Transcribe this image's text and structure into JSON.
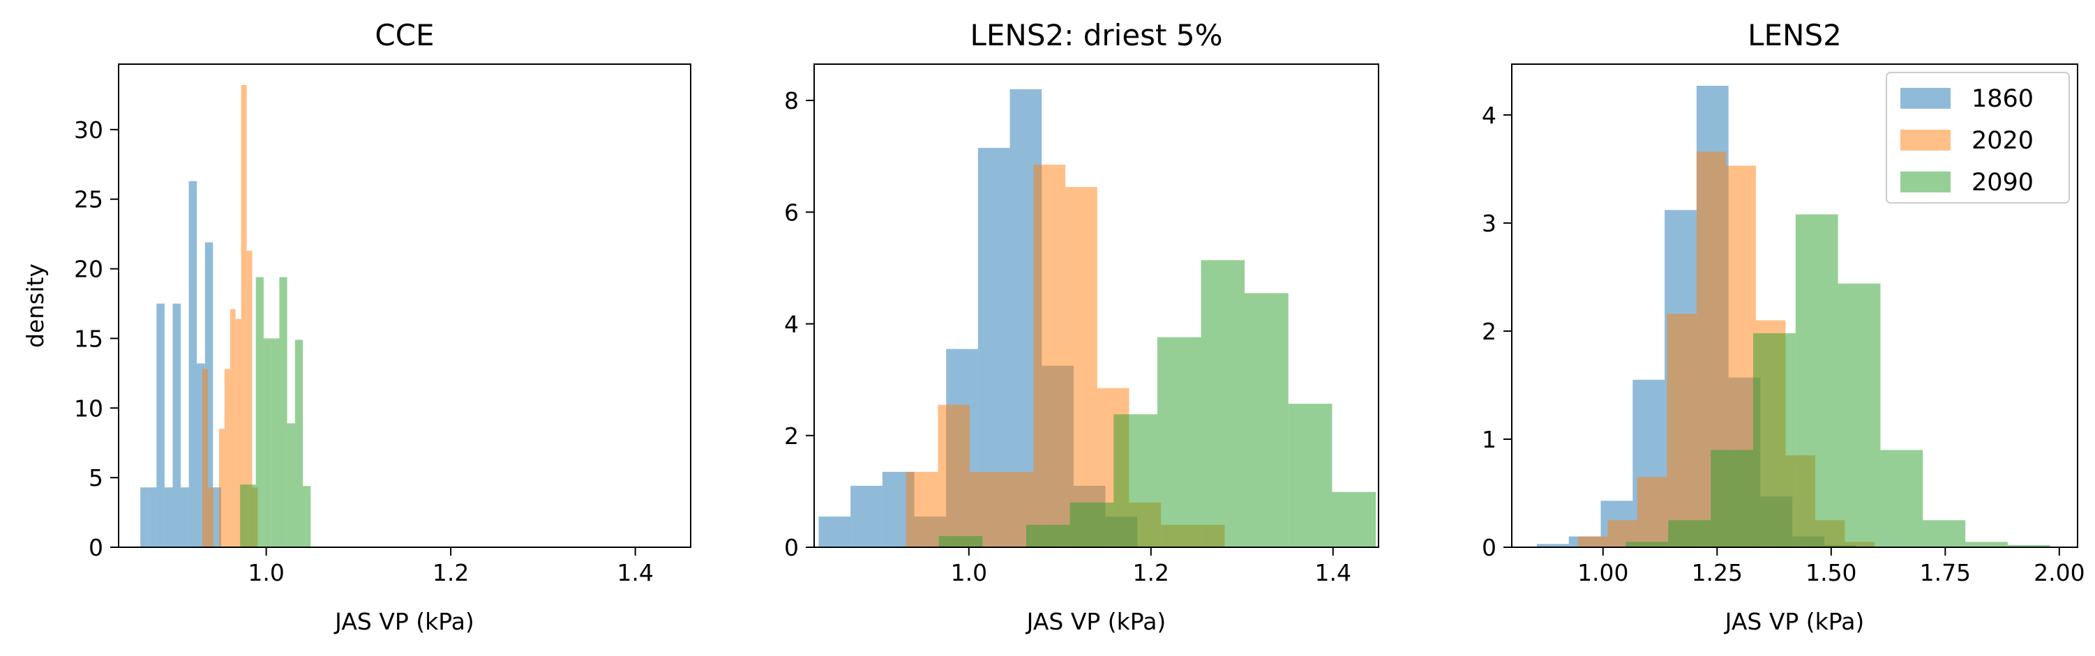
{
  "colors": {
    "c1860": "#1f77b4",
    "c2020": "#ff7f0e",
    "c2090": "#2ca02c"
  },
  "legend": {
    "placement": "top-right",
    "panel": 2,
    "entries": [
      "1860",
      "2020",
      "2090"
    ]
  },
  "chart_data": [
    {
      "type": "histogram",
      "title": "CCE",
      "xlabel": "JAS VP (kPa)",
      "ylabel": "density",
      "xlim": [
        0.84,
        1.46
      ],
      "ylim": [
        0,
        34.7
      ],
      "xticks": [
        1.0,
        1.2,
        1.4
      ],
      "xtick_labels": [
        "1.0",
        "1.2",
        "1.4"
      ],
      "yticks": [
        0,
        5,
        10,
        15,
        20,
        25,
        30
      ],
      "ytick_labels": [
        "0",
        "5",
        "10",
        "15",
        "20",
        "25",
        "30"
      ],
      "series": [
        {
          "name": "1860",
          "bins": [
            0.8636,
            0.8723,
            0.8811,
            0.8898,
            0.8986,
            0.9073,
            0.9161,
            0.9248,
            0.9336,
            0.9423,
            0.9511
          ],
          "values": [
            4.3,
            4.3,
            17.5,
            4.3,
            17.5,
            4.3,
            26.3,
            13.2,
            21.9,
            4.3
          ]
        },
        {
          "name": "2020",
          "bins": [
            0.9308,
            0.9368,
            0.9428,
            0.9488,
            0.9548,
            0.9608,
            0.9668,
            0.9728,
            0.9788,
            0.9848,
            0.9908
          ],
          "values": [
            12.8,
            4.3,
            0,
            8.5,
            12.8,
            17.1,
            16.4,
            33.2,
            21.3,
            4.3
          ]
        },
        {
          "name": "2090",
          "bins": [
            0.9632,
            0.9717,
            0.9802,
            0.9887,
            0.9972,
            1.0057,
            1.0142,
            1.0227,
            1.0312,
            1.0397,
            1.0482
          ],
          "values": [
            0,
            4.5,
            4.5,
            19.4,
            15.0,
            15.0,
            19.4,
            8.9,
            14.9,
            4.4
          ]
        }
      ]
    },
    {
      "type": "histogram",
      "title": "LENS2: driest 5%",
      "xlabel": "JAS VP (kPa)",
      "ylabel": "",
      "xlim": [
        0.83,
        1.45
      ],
      "ylim": [
        0,
        8.65
      ],
      "xticks": [
        1.0,
        1.2,
        1.4
      ],
      "xtick_labels": [
        "1.0",
        "1.2",
        "1.4"
      ],
      "yticks": [
        0,
        2,
        4,
        6,
        8
      ],
      "ytick_labels": [
        "0",
        "2",
        "4",
        "6",
        "8"
      ],
      "series": [
        {
          "name": "1860",
          "bins": [
            0.835,
            0.87,
            0.905,
            0.94,
            0.975,
            1.01,
            1.045,
            1.08,
            1.115,
            1.15,
            1.185
          ],
          "values": [
            0.55,
            1.1,
            1.35,
            0.55,
            3.55,
            7.15,
            8.2,
            3.25,
            1.1,
            0.55
          ]
        },
        {
          "name": "2020",
          "bins": [
            0.931,
            0.966,
            1.001,
            1.036,
            1.071,
            1.106,
            1.141,
            1.176,
            1.211,
            1.246,
            1.281
          ],
          "values": [
            1.35,
            2.55,
            1.35,
            1.35,
            6.85,
            6.45,
            2.85,
            0.8,
            0.4,
            0.4
          ]
        },
        {
          "name": "2090",
          "bins": [
            0.967,
            1.015,
            1.063,
            1.111,
            1.159,
            1.207,
            1.255,
            1.303,
            1.351,
            1.399,
            1.447
          ],
          "values": [
            0.2,
            0,
            0.4,
            0.8,
            2.38,
            3.76,
            5.14,
            4.55,
            2.57,
            0.99
          ]
        }
      ]
    },
    {
      "type": "histogram",
      "title": "LENS2",
      "xlabel": "JAS VP (kPa)",
      "ylabel": "",
      "xlim": [
        0.8,
        2.04
      ],
      "ylim": [
        0,
        4.47
      ],
      "xticks": [
        1.0,
        1.25,
        1.5,
        1.75,
        2.0
      ],
      "xtick_labels": [
        "1.00",
        "1.25",
        "1.50",
        "1.75",
        "2.00"
      ],
      "yticks": [
        0,
        1,
        2,
        3,
        4
      ],
      "ytick_labels": [
        "0",
        "1",
        "2",
        "3",
        "4"
      ],
      "series": [
        {
          "name": "1860",
          "bins": [
            0.855,
            0.925,
            0.995,
            1.065,
            1.135,
            1.205,
            1.275,
            1.345,
            1.415,
            1.485,
            1.555
          ],
          "values": [
            0.03,
            0.1,
            0.43,
            1.55,
            3.12,
            4.27,
            1.57,
            0.47,
            0.1,
            0.02
          ]
        },
        {
          "name": "2020",
          "bins": [
            0.945,
            1.01,
            1.075,
            1.14,
            1.205,
            1.27,
            1.335,
            1.4,
            1.465,
            1.53,
            1.595
          ],
          "values": [
            0.1,
            0.25,
            0.65,
            2.16,
            3.66,
            3.53,
            2.1,
            0.85,
            0.25,
            0.05
          ]
        },
        {
          "name": "2090",
          "bins": [
            1.05,
            1.143,
            1.236,
            1.329,
            1.422,
            1.515,
            1.608,
            1.701,
            1.794,
            1.887,
            1.98
          ],
          "values": [
            0.05,
            0.25,
            0.9,
            1.98,
            3.08,
            2.44,
            0.9,
            0.25,
            0.05,
            0.02
          ]
        }
      ]
    }
  ]
}
